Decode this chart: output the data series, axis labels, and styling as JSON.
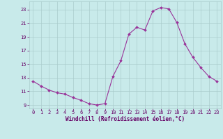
{
  "x": [
    0,
    1,
    2,
    3,
    4,
    5,
    6,
    7,
    8,
    9,
    10,
    11,
    12,
    13,
    14,
    15,
    16,
    17,
    18,
    19,
    20,
    21,
    22,
    23
  ],
  "y": [
    12.5,
    11.8,
    11.2,
    10.8,
    10.6,
    10.1,
    9.7,
    9.2,
    9.0,
    9.2,
    13.2,
    15.5,
    19.4,
    20.4,
    20.0,
    22.8,
    23.3,
    23.1,
    21.1,
    18.0,
    16.0,
    14.5,
    13.2,
    12.5
  ],
  "line_color": "#993399",
  "marker": "D",
  "marker_size": 2.0,
  "bg_color": "#c8eaea",
  "grid_color": "#aacccc",
  "xlabel": "Windchill (Refroidissement éolien,°C)",
  "xlabel_color": "#660066",
  "tick_color": "#660066",
  "ylim": [
    8.5,
    24.2
  ],
  "xlim": [
    -0.5,
    23.5
  ],
  "yticks": [
    9,
    11,
    13,
    15,
    17,
    19,
    21,
    23
  ],
  "xticks": [
    0,
    1,
    2,
    3,
    4,
    5,
    6,
    7,
    8,
    9,
    10,
    11,
    12,
    13,
    14,
    15,
    16,
    17,
    18,
    19,
    20,
    21,
    22,
    23
  ],
  "tick_fontsize": 5.0,
  "xlabel_fontsize": 5.5
}
